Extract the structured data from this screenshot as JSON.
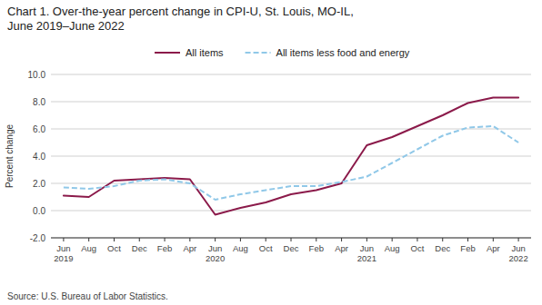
{
  "chart_data": {
    "type": "line",
    "title": "Chart 1. Over-the-year percent change in CPI-U, St. Louis, MO-IL,\nJune 2019–June 2022",
    "y_label": "Percent change",
    "source": "Source: U.S. Bureau of Labor Statistics.",
    "categories": [
      "Jun\n2019",
      "Aug",
      "Oct",
      "Dec",
      "Feb",
      "Apr",
      "Jun\n2020",
      "Aug",
      "Oct",
      "Dec",
      "Feb",
      "Apr",
      "Jun\n2021",
      "Aug",
      "Oct",
      "Dec",
      "Feb",
      "Apr",
      "Jun\n2022"
    ],
    "series": [
      {
        "name": "All items",
        "color": "#8B1A4A",
        "line_style": "solid",
        "values": [
          1.1,
          1.0,
          2.2,
          2.3,
          2.4,
          2.3,
          -0.3,
          0.2,
          0.6,
          1.2,
          1.5,
          2.0,
          4.8,
          5.4,
          6.2,
          7.0,
          7.9,
          8.3,
          8.3
        ]
      },
      {
        "name": "All items less food and energy",
        "color": "#90C8E8",
        "line_style": "dashed",
        "values": [
          1.7,
          1.6,
          1.8,
          2.2,
          2.3,
          2.0,
          0.8,
          1.2,
          1.5,
          1.8,
          1.8,
          2.1,
          2.5,
          3.5,
          4.5,
          5.5,
          6.1,
          6.2,
          5.0
        ]
      }
    ],
    "ylim": [
      -2.0,
      10.0
    ],
    "yticks": [
      {
        "value": -2.0,
        "label": "-2.0"
      },
      {
        "value": 0.0,
        "label": "0.0"
      },
      {
        "value": 2.0,
        "label": "2.0"
      },
      {
        "value": 4.0,
        "label": "4.0"
      },
      {
        "value": 6.0,
        "label": "6.0"
      },
      {
        "value": 8.0,
        "label": "8.0"
      },
      {
        "value": 10.0,
        "label": "10.0"
      }
    ],
    "grid": true,
    "legend": "top"
  }
}
